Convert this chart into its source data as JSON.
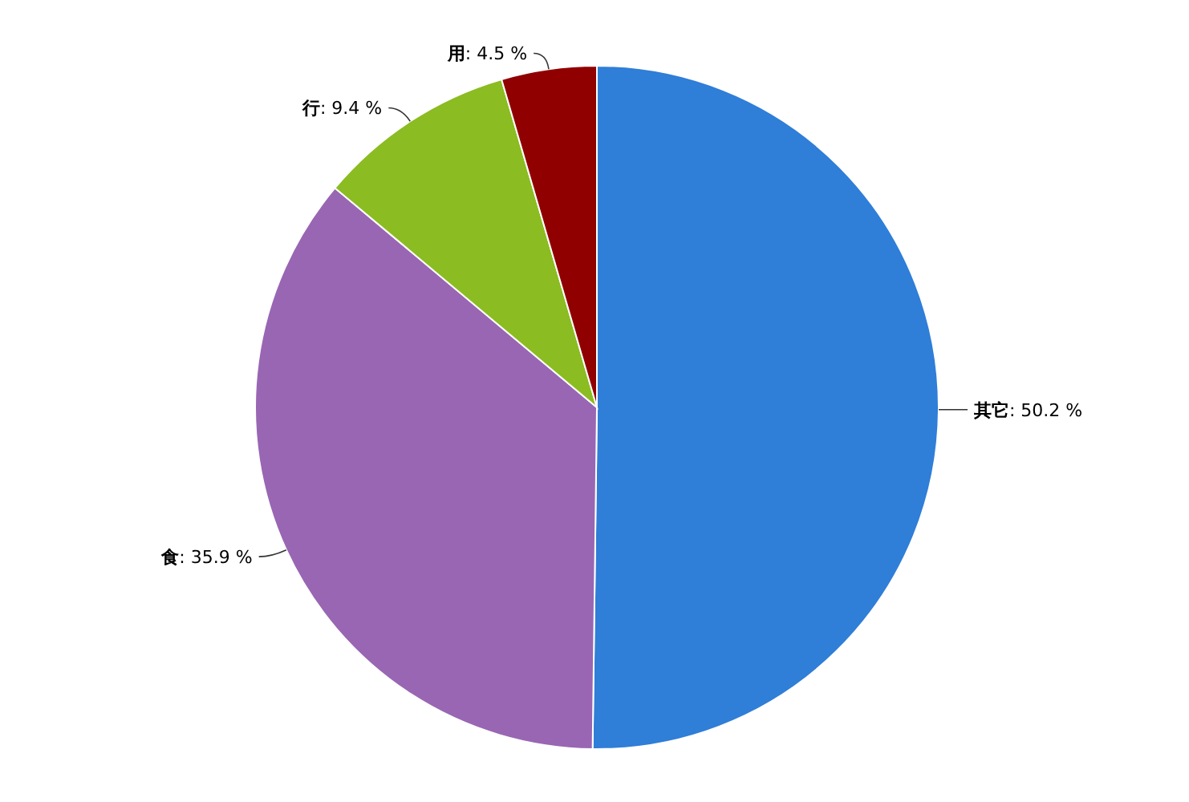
{
  "chart_data": {
    "type": "pie",
    "categories": [
      "其它",
      "食",
      "行",
      "用"
    ],
    "values": [
      50.2,
      35.9,
      9.4,
      4.5
    ],
    "colors": [
      "#2f7ed8",
      "#9966b3",
      "#8bbc21",
      "#910000"
    ],
    "value_labels": [
      ": 50.2 %",
      ": 35.9 %",
      ": 9.4 %",
      ": 4.5 %"
    ]
  }
}
